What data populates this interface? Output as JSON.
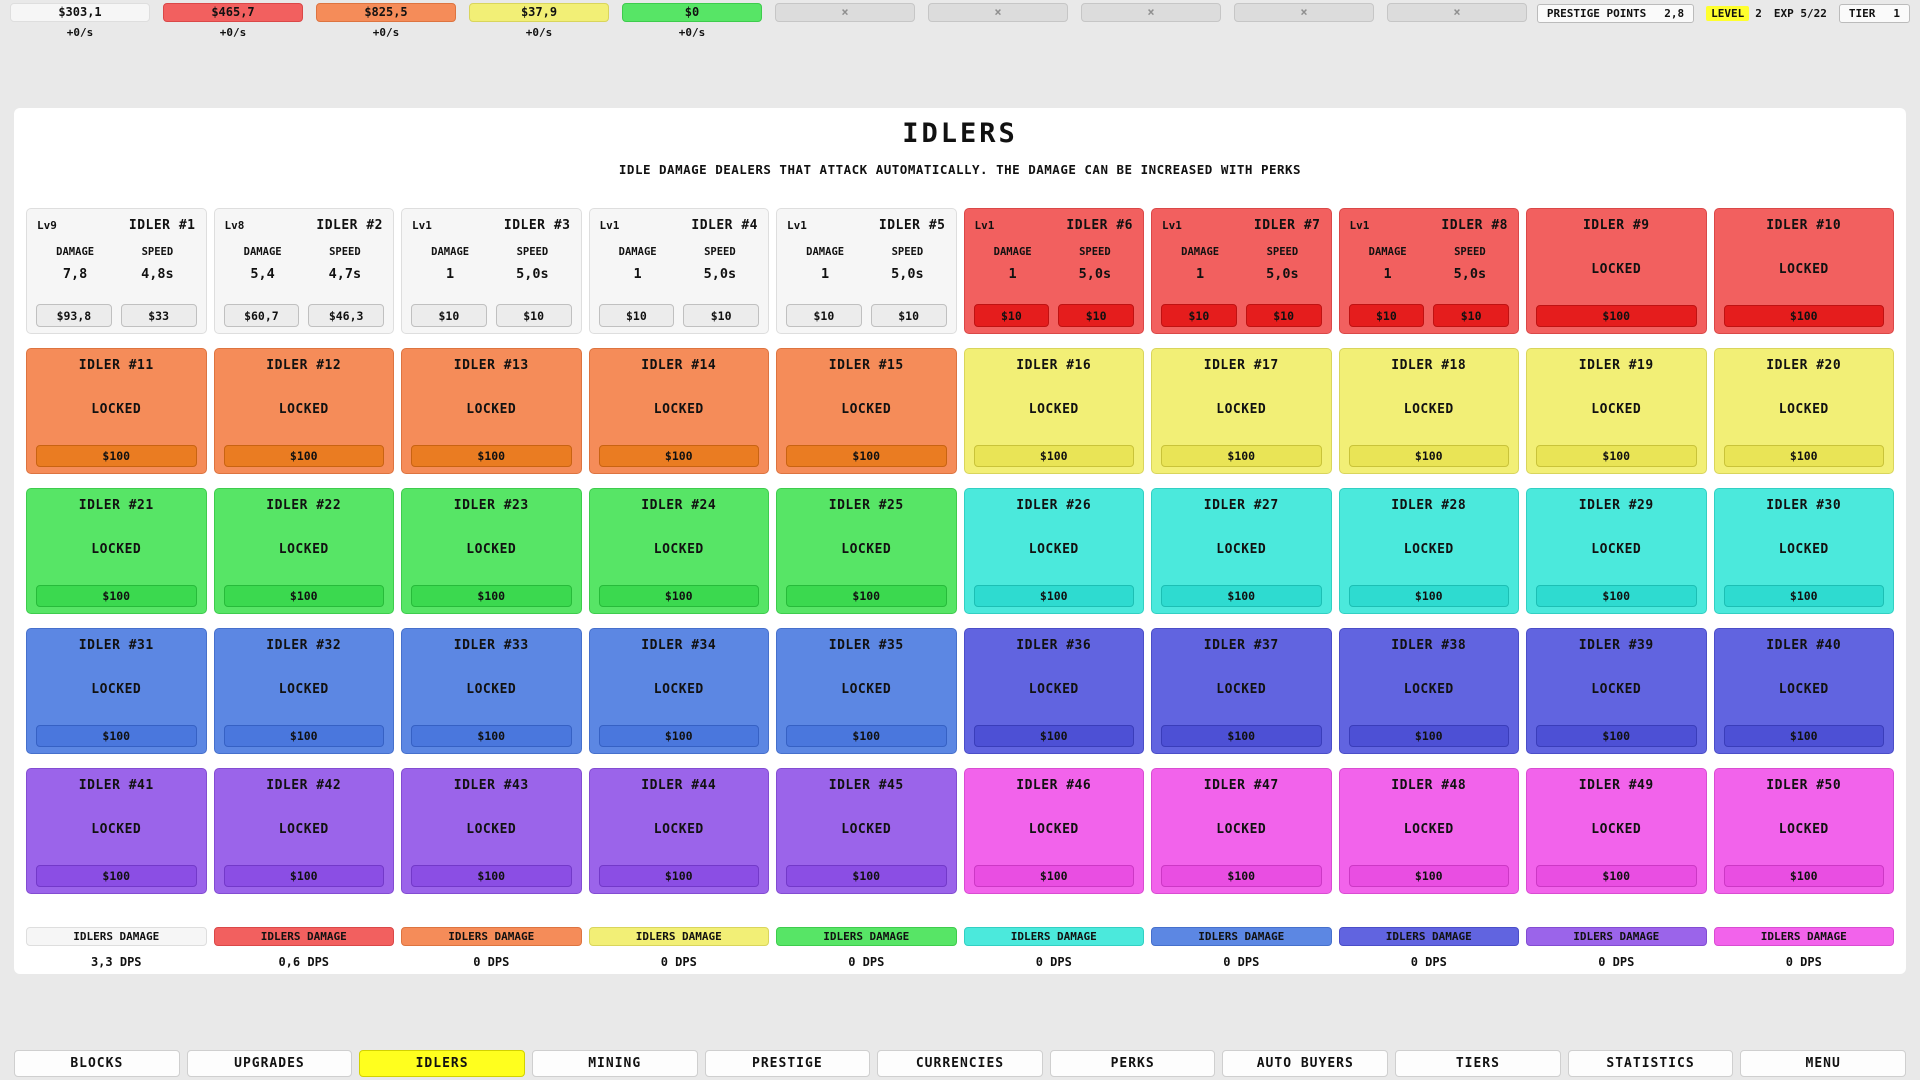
{
  "top_bar": {
    "currencies": [
      {
        "value": "$303,1",
        "rate": "+0/s",
        "theme": "gray"
      },
      {
        "value": "$465,7",
        "rate": "+0/s",
        "theme": "red"
      },
      {
        "value": "$825,5",
        "rate": "+0/s",
        "theme": "orange"
      },
      {
        "value": "$37,9",
        "rate": "+0/s",
        "theme": "yellow"
      },
      {
        "value": "$0",
        "rate": "+0/s",
        "theme": "green"
      }
    ],
    "locked_slots": 5,
    "locked_symbol": "×",
    "prestige_label": "PRESTIGE POINTS",
    "prestige_value": "2,8",
    "level_label": "LEVEL",
    "level_value": "2",
    "exp_text": "EXP 5/22",
    "tier_label": "TIER",
    "tier_value": "1"
  },
  "panel": {
    "title": "IDLERS",
    "subtitle": "IDLE DAMAGE DEALERS THAT ATTACK AUTOMATICALLY. THE DAMAGE CAN BE INCREASED WITH PERKS"
  },
  "stat_labels": {
    "damage": "DAMAGE",
    "speed": "SPEED"
  },
  "locked_label": "LOCKED",
  "themes": {
    "gray": {
      "bg": "#f6f6f6",
      "border": "#dedede",
      "btn": "#ececec",
      "btnBorder": "#c0c0c0"
    },
    "red": {
      "bg": "#f2605f",
      "border": "#da4848",
      "btn": "#e51d1d",
      "btnBorder": "#bf1212"
    },
    "orange": {
      "bg": "#f58c59",
      "border": "#dd7440",
      "btn": "#ea7c22",
      "btnBorder": "#c96312"
    },
    "yellow": {
      "bg": "#f2ef76",
      "border": "#d9d55c",
      "btn": "#e9e456",
      "btnBorder": "#c9c339"
    },
    "green": {
      "bg": "#57e566",
      "border": "#3ecc4d",
      "btn": "#3bd94f",
      "btnBorder": "#27bb3a"
    },
    "cyan": {
      "bg": "#4be9dc",
      "border": "#32d0c3",
      "btn": "#2edbd0",
      "btnBorder": "#1cbfb4"
    },
    "blue": {
      "bg": "#5c87e3",
      "border": "#4670cc",
      "btn": "#4a77dd",
      "btnBorder": "#3661c4"
    },
    "indigo": {
      "bg": "#6164e0",
      "border": "#4b4ec8",
      "btn": "#4d50d5",
      "btnBorder": "#3a3dba"
    },
    "purple": {
      "bg": "#9b64ea",
      "border": "#834cd2",
      "btn": "#8b4ee4",
      "btnBorder": "#7339c9"
    },
    "magenta": {
      "bg": "#f263eb",
      "border": "#d94cd2",
      "btn": "#e94ee2",
      "btnBorder": "#cc38c5"
    }
  },
  "idlers": [
    {
      "name": "IDLER #1",
      "unlocked": true,
      "lv": "Lv9",
      "damage": "7,8",
      "speed": "4,8s",
      "btn1": "$93,8",
      "btn2": "$33",
      "theme": "gray"
    },
    {
      "name": "IDLER #2",
      "unlocked": true,
      "lv": "Lv8",
      "damage": "5,4",
      "speed": "4,7s",
      "btn1": "$60,7",
      "btn2": "$46,3",
      "theme": "gray"
    },
    {
      "name": "IDLER #3",
      "unlocked": true,
      "lv": "Lv1",
      "damage": "1",
      "speed": "5,0s",
      "btn1": "$10",
      "btn2": "$10",
      "theme": "gray"
    },
    {
      "name": "IDLER #4",
      "unlocked": true,
      "lv": "Lv1",
      "damage": "1",
      "speed": "5,0s",
      "btn1": "$10",
      "btn2": "$10",
      "theme": "gray"
    },
    {
      "name": "IDLER #5",
      "unlocked": true,
      "lv": "Lv1",
      "damage": "1",
      "speed": "5,0s",
      "btn1": "$10",
      "btn2": "$10",
      "theme": "gray"
    },
    {
      "name": "IDLER #6",
      "unlocked": true,
      "lv": "Lv1",
      "damage": "1",
      "speed": "5,0s",
      "btn1": "$10",
      "btn2": "$10",
      "theme": "red"
    },
    {
      "name": "IDLER #7",
      "unlocked": true,
      "lv": "Lv1",
      "damage": "1",
      "speed": "5,0s",
      "btn1": "$10",
      "btn2": "$10",
      "theme": "red"
    },
    {
      "name": "IDLER #8",
      "unlocked": true,
      "lv": "Lv1",
      "damage": "1",
      "speed": "5,0s",
      "btn1": "$10",
      "btn2": "$10",
      "theme": "red"
    },
    {
      "name": "IDLER #9",
      "unlocked": false,
      "price": "$100",
      "theme": "red"
    },
    {
      "name": "IDLER #10",
      "unlocked": false,
      "price": "$100",
      "theme": "red"
    },
    {
      "name": "IDLER #11",
      "unlocked": false,
      "price": "$100",
      "theme": "orange"
    },
    {
      "name": "IDLER #12",
      "unlocked": false,
      "price": "$100",
      "theme": "orange"
    },
    {
      "name": "IDLER #13",
      "unlocked": false,
      "price": "$100",
      "theme": "orange"
    },
    {
      "name": "IDLER #14",
      "unlocked": false,
      "price": "$100",
      "theme": "orange"
    },
    {
      "name": "IDLER #15",
      "unlocked": false,
      "price": "$100",
      "theme": "orange"
    },
    {
      "name": "IDLER #16",
      "unlocked": false,
      "price": "$100",
      "theme": "yellow"
    },
    {
      "name": "IDLER #17",
      "unlocked": false,
      "price": "$100",
      "theme": "yellow"
    },
    {
      "name": "IDLER #18",
      "unlocked": false,
      "price": "$100",
      "theme": "yellow"
    },
    {
      "name": "IDLER #19",
      "unlocked": false,
      "price": "$100",
      "theme": "yellow"
    },
    {
      "name": "IDLER #20",
      "unlocked": false,
      "price": "$100",
      "theme": "yellow"
    },
    {
      "name": "IDLER #21",
      "unlocked": false,
      "price": "$100",
      "theme": "green"
    },
    {
      "name": "IDLER #22",
      "unlocked": false,
      "price": "$100",
      "theme": "green"
    },
    {
      "name": "IDLER #23",
      "unlocked": false,
      "price": "$100",
      "theme": "green"
    },
    {
      "name": "IDLER #24",
      "unlocked": false,
      "price": "$100",
      "theme": "green"
    },
    {
      "name": "IDLER #25",
      "unlocked": false,
      "price": "$100",
      "theme": "green"
    },
    {
      "name": "IDLER #26",
      "unlocked": false,
      "price": "$100",
      "theme": "cyan"
    },
    {
      "name": "IDLER #27",
      "unlocked": false,
      "price": "$100",
      "theme": "cyan"
    },
    {
      "name": "IDLER #28",
      "unlocked": false,
      "price": "$100",
      "theme": "cyan"
    },
    {
      "name": "IDLER #29",
      "unlocked": false,
      "price": "$100",
      "theme": "cyan"
    },
    {
      "name": "IDLER #30",
      "unlocked": false,
      "price": "$100",
      "theme": "cyan"
    },
    {
      "name": "IDLER #31",
      "unlocked": false,
      "price": "$100",
      "theme": "blue"
    },
    {
      "name": "IDLER #32",
      "unlocked": false,
      "price": "$100",
      "theme": "blue"
    },
    {
      "name": "IDLER #33",
      "unlocked": false,
      "price": "$100",
      "theme": "blue"
    },
    {
      "name": "IDLER #34",
      "unlocked": false,
      "price": "$100",
      "theme": "blue"
    },
    {
      "name": "IDLER #35",
      "unlocked": false,
      "price": "$100",
      "theme": "blue"
    },
    {
      "name": "IDLER #36",
      "unlocked": false,
      "price": "$100",
      "theme": "indigo"
    },
    {
      "name": "IDLER #37",
      "unlocked": false,
      "price": "$100",
      "theme": "indigo"
    },
    {
      "name": "IDLER #38",
      "unlocked": false,
      "price": "$100",
      "theme": "indigo"
    },
    {
      "name": "IDLER #39",
      "unlocked": false,
      "price": "$100",
      "theme": "indigo"
    },
    {
      "name": "IDLER #40",
      "unlocked": false,
      "price": "$100",
      "theme": "indigo"
    },
    {
      "name": "IDLER #41",
      "unlocked": false,
      "price": "$100",
      "theme": "purple"
    },
    {
      "name": "IDLER #42",
      "unlocked": false,
      "price": "$100",
      "theme": "purple"
    },
    {
      "name": "IDLER #43",
      "unlocked": false,
      "price": "$100",
      "theme": "purple"
    },
    {
      "name": "IDLER #44",
      "unlocked": false,
      "price": "$100",
      "theme": "purple"
    },
    {
      "name": "IDLER #45",
      "unlocked": false,
      "price": "$100",
      "theme": "purple"
    },
    {
      "name": "IDLER #46",
      "unlocked": false,
      "price": "$100",
      "theme": "magenta"
    },
    {
      "name": "IDLER #47",
      "unlocked": false,
      "price": "$100",
      "theme": "magenta"
    },
    {
      "name": "IDLER #48",
      "unlocked": false,
      "price": "$100",
      "theme": "magenta"
    },
    {
      "name": "IDLER #49",
      "unlocked": false,
      "price": "$100",
      "theme": "magenta"
    },
    {
      "name": "IDLER #50",
      "unlocked": false,
      "price": "$100",
      "theme": "magenta"
    }
  ],
  "summary": [
    {
      "label": "IDLERS DAMAGE",
      "value": "3,3 DPS",
      "theme": "gray"
    },
    {
      "label": "IDLERS DAMAGE",
      "value": "0,6 DPS",
      "theme": "red"
    },
    {
      "label": "IDLERS DAMAGE",
      "value": "0 DPS",
      "theme": "orange"
    },
    {
      "label": "IDLERS DAMAGE",
      "value": "0 DPS",
      "theme": "yellow"
    },
    {
      "label": "IDLERS DAMAGE",
      "value": "0 DPS",
      "theme": "green"
    },
    {
      "label": "IDLERS DAMAGE",
      "value": "0 DPS",
      "theme": "cyan"
    },
    {
      "label": "IDLERS DAMAGE",
      "value": "0 DPS",
      "theme": "blue"
    },
    {
      "label": "IDLERS DAMAGE",
      "value": "0 DPS",
      "theme": "indigo"
    },
    {
      "label": "IDLERS DAMAGE",
      "value": "0 DPS",
      "theme": "purple"
    },
    {
      "label": "IDLERS DAMAGE",
      "value": "0 DPS",
      "theme": "magenta"
    }
  ],
  "nav": [
    {
      "label": "BLOCKS"
    },
    {
      "label": "UPGRADES"
    },
    {
      "label": "IDLERS",
      "active": true
    },
    {
      "label": "MINING"
    },
    {
      "label": "PRESTIGE"
    },
    {
      "label": "CURRENCIES"
    },
    {
      "label": "PERKS"
    },
    {
      "label": "AUTO BUYERS"
    },
    {
      "label": "TIERS"
    },
    {
      "label": "STATISTICS"
    },
    {
      "label": "MENU"
    }
  ]
}
